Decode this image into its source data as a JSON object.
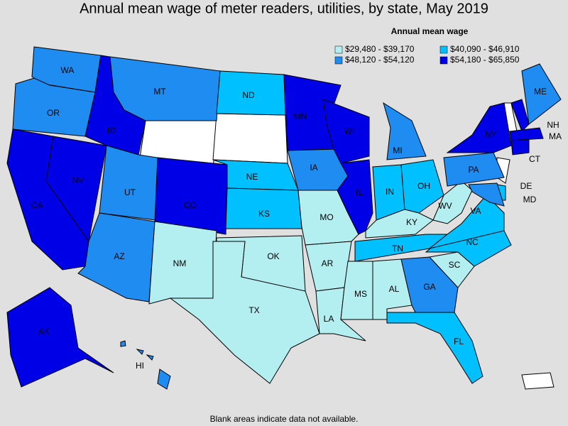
{
  "title": "Annual mean wage of meter readers, utilities, by state, May 2019",
  "legend": {
    "title": "Annual mean wage",
    "items": [
      {
        "label": "$29,480 - $39,170",
        "color": "#b3eef0"
      },
      {
        "label": "$40,090 - $46,910",
        "color": "#00c0ff"
      },
      {
        "label": "$48,120 - $54,120",
        "color": "#1e8cf0"
      },
      {
        "label": "$54,180 - $65,850",
        "color": "#0000e6"
      }
    ]
  },
  "states": [
    {
      "label": "WA",
      "color": "#1e8cf0"
    },
    {
      "label": "OR",
      "color": "#1e8cf0"
    },
    {
      "label": "CA",
      "color": "#0000e6"
    },
    {
      "label": "NV",
      "color": "#0000e6"
    },
    {
      "label": "ID",
      "color": "#0000e6"
    },
    {
      "label": "MT",
      "color": "#1e8cf0"
    },
    {
      "label": "UT",
      "color": "#1e8cf0"
    },
    {
      "label": "CO",
      "color": "#0000e6"
    },
    {
      "label": "AZ",
      "color": "#1e8cf0"
    },
    {
      "label": "NM",
      "color": "#b3eef0"
    },
    {
      "label": "ND",
      "color": "#00c0ff"
    },
    {
      "label": "NE",
      "color": "#00c0ff"
    },
    {
      "label": "KS",
      "color": "#00c0ff"
    },
    {
      "label": "OK",
      "color": "#b3eef0"
    },
    {
      "label": "TX",
      "color": "#b3eef0"
    },
    {
      "label": "MN",
      "color": "#0000e6"
    },
    {
      "label": "IA",
      "color": "#1e8cf0"
    },
    {
      "label": "MO",
      "color": "#b3eef0"
    },
    {
      "label": "AR",
      "color": "#b3eef0"
    },
    {
      "label": "LA",
      "color": "#b3eef0"
    },
    {
      "label": "WI",
      "color": "#0000e6"
    },
    {
      "label": "IL",
      "color": "#0000e6"
    },
    {
      "label": "MI",
      "color": "#1e8cf0"
    },
    {
      "label": "IN",
      "color": "#00c0ff"
    },
    {
      "label": "OH",
      "color": "#00c0ff"
    },
    {
      "label": "KY",
      "color": "#b3eef0"
    },
    {
      "label": "TN",
      "color": "#00c0ff"
    },
    {
      "label": "MS",
      "color": "#b3eef0"
    },
    {
      "label": "AL",
      "color": "#b3eef0"
    },
    {
      "label": "GA",
      "color": "#1e8cf0"
    },
    {
      "label": "FL",
      "color": "#00c0ff"
    },
    {
      "label": "SC",
      "color": "#b3eef0"
    },
    {
      "label": "NC",
      "color": "#00c0ff"
    },
    {
      "label": "VA",
      "color": "#00c0ff"
    },
    {
      "label": "WV",
      "color": "#b3eef0"
    },
    {
      "label": "PA",
      "color": "#1e8cf0"
    },
    {
      "label": "NY",
      "color": "#0000e6"
    },
    {
      "label": "ME",
      "color": "#1e8cf0"
    },
    {
      "label": "NH",
      "color": "#0000e6"
    },
    {
      "label": "MA",
      "color": "#0000e6"
    },
    {
      "label": "CT",
      "color": "#0000e6"
    },
    {
      "label": "DE",
      "color": "#00c0ff"
    },
    {
      "label": "MD",
      "color": "#1e8cf0"
    },
    {
      "label": "AK",
      "color": "#0000e6"
    },
    {
      "label": "HI",
      "color": "#1e8cf0"
    }
  ],
  "footnote": "Blank areas indicate data not available."
}
